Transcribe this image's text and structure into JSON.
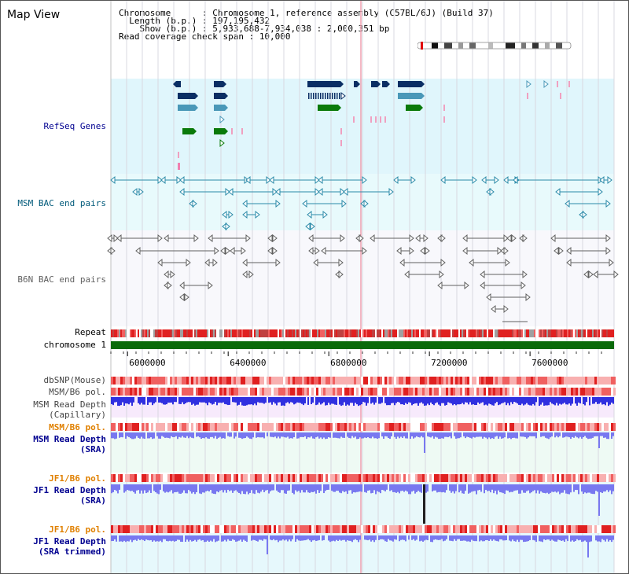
{
  "title": "Map View",
  "info": [
    {
      "key": "Chromosome",
      "value": "Chromosome 1, reference assembly (C57BL/6J) (Build 37)"
    },
    {
      "key": "Length (b.p.)",
      "value": "197,195,432"
    },
    {
      "key": "Show (b.p.)",
      "value": "5,933,688-7,934,038 : 2,000,351 bp"
    },
    {
      "key": "Read coverage check span",
      "value": "10,000"
    }
  ],
  "colors": {
    "refseq_bg": "#e0f6fc",
    "msm_bac_bg": "#e8fafc",
    "b6n_bac_bg": "#f8f8fc",
    "gene_dark": "#0a2e64",
    "gene_mid": "#4a98b8",
    "gene_green": "#0a7a0a",
    "bac_msm": "#2a8aa8",
    "bac_b6n": "#606060",
    "chrom_green": "#0a6a0a",
    "depth_blue": "#3030e0",
    "depth_light": "#7878f0",
    "pol_red": "#f04040",
    "label_navy": "#000090",
    "label_teal": "#005a7a",
    "label_orange": "#e08000"
  },
  "tracks": {
    "refseq": "RefSeq Genes",
    "msm_bac": "MSM BAC end pairs",
    "b6n_bac": "B6N BAC end pairs",
    "repeat": "Repeat",
    "chromosome": "chromosome 1",
    "dbsnp": "dbSNP(Mouse)",
    "msm_b6_pol": "MSM/B6 pol.",
    "msm_depth_cap": "MSM Read Depth\n(Capillary)",
    "msm_b6_pol_2": "MSM/B6 pol.",
    "msm_depth_sra": "MSM Read Depth\n(SRA)",
    "jf1_b6_pol": "JF1/B6 pol.",
    "jf1_depth_sra": "JF1 Read Depth\n(SRA)",
    "jf1_b6_pol_2": "JF1/B6 pol.",
    "jf1_depth_trim": "JF1 Read Depth\n(SRA trimmed)"
  },
  "axis": {
    "start": 5933688,
    "end": 7934038,
    "ticks": [
      {
        "value": 6000000,
        "label": "6000000"
      },
      {
        "value": 6400000,
        "label": "6400000"
      },
      {
        "value": 6800000,
        "label": "6800000"
      },
      {
        "value": 7200000,
        "label": "7200000"
      },
      {
        "value": 7600000,
        "label": "7600000"
      }
    ]
  }
}
